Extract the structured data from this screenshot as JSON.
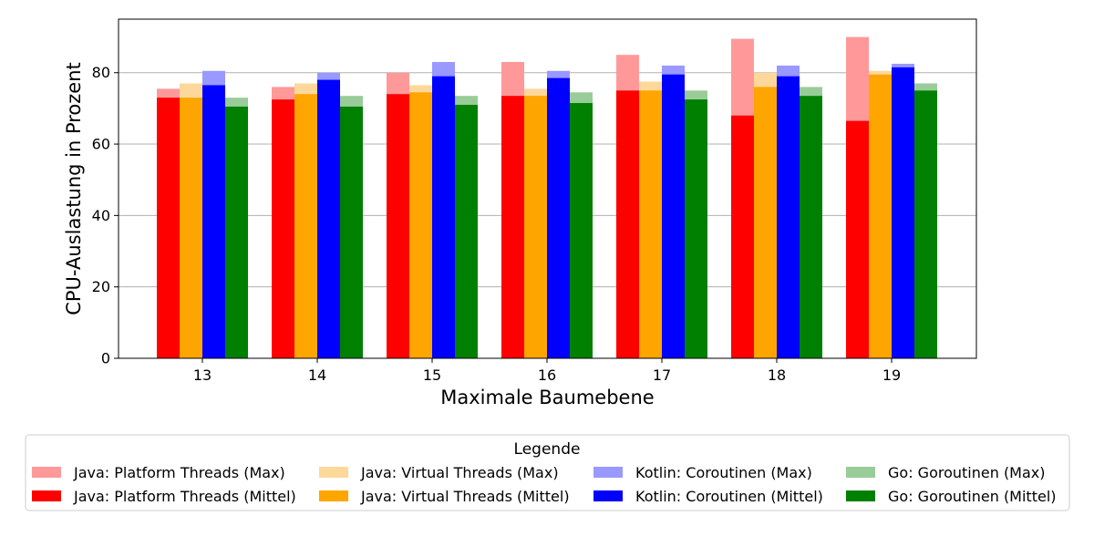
{
  "chart_data": {
    "type": "bar",
    "xlabel": "Maximale Baumebene",
    "ylabel": "CPU-Auslastung in Prozent",
    "ylim": [
      0,
      95
    ],
    "yticks": [
      0,
      20,
      40,
      60,
      80
    ],
    "grid": "horizontal",
    "categories": [
      "13",
      "14",
      "15",
      "16",
      "17",
      "18",
      "19"
    ],
    "legend": {
      "title": "Legende",
      "placement": "bottom-center",
      "columns": 4
    },
    "series": [
      {
        "name": "Java: Platform Threads (Max)",
        "color": "#ff9999",
        "group": "Java: Platform Threads",
        "kind": "max",
        "values": [
          75.5,
          76.0,
          80.0,
          83.0,
          85.0,
          89.5,
          90.0
        ]
      },
      {
        "name": "Java: Platform Threads (Mittel)",
        "color": "#ff0000",
        "group": "Java: Platform Threads",
        "kind": "mean",
        "values": [
          73.0,
          72.5,
          74.0,
          73.5,
          75.0,
          68.0,
          66.5
        ]
      },
      {
        "name": "Java: Virtual Threads (Max)",
        "color": "#fdd89a",
        "group": "Java: Virtual Threads",
        "kind": "max",
        "values": [
          77.0,
          77.0,
          76.5,
          75.5,
          77.5,
          80.0,
          80.5
        ]
      },
      {
        "name": "Java: Virtual Threads (Mittel)",
        "color": "#ffa500",
        "group": "Java: Virtual Threads",
        "kind": "mean",
        "values": [
          73.0,
          74.0,
          74.5,
          73.5,
          75.0,
          76.0,
          79.5
        ]
      },
      {
        "name": "Kotlin: Coroutinen (Max)",
        "color": "#9999ff",
        "group": "Kotlin: Coroutinen",
        "kind": "max",
        "values": [
          80.5,
          80.0,
          83.0,
          80.5,
          82.0,
          82.0,
          82.5
        ]
      },
      {
        "name": "Kotlin: Coroutinen (Mittel)",
        "color": "#0000ff",
        "group": "Kotlin: Coroutinen",
        "kind": "mean",
        "values": [
          76.5,
          78.0,
          79.0,
          78.5,
          79.5,
          79.0,
          81.5
        ]
      },
      {
        "name": "Go: Goroutinen (Max)",
        "color": "#99cc99",
        "group": "Go: Goroutinen",
        "kind": "max",
        "values": [
          73.0,
          73.5,
          73.5,
          74.5,
          75.0,
          76.0,
          77.0
        ]
      },
      {
        "name": "Go: Goroutinen (Mittel)",
        "color": "#008000",
        "group": "Go: Goroutinen",
        "kind": "mean",
        "values": [
          70.5,
          70.5,
          71.0,
          71.5,
          72.5,
          73.5,
          75.0
        ]
      }
    ]
  }
}
